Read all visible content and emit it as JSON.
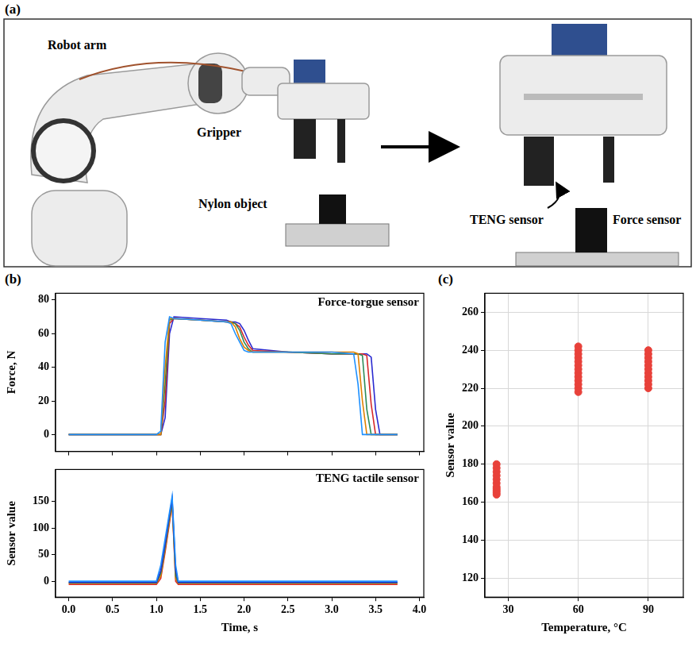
{
  "photo_panel": {
    "panel": "(a)",
    "labels": {
      "robot_arm": "Robot arm",
      "gripper": "Gripper",
      "nylon_object": "Nylon object",
      "teng_sensor": "TENG sensor",
      "force_sensor": "Force sensor"
    }
  },
  "chart_data": [
    {
      "type": "line",
      "panel": "(b)",
      "annotation": "Force-torgue sensor",
      "y_label": "Force, N",
      "grid": false,
      "tick_labels": "y",
      "marker": "none",
      "line_style": "solid",
      "xlim": [
        -0.15,
        4.05
      ],
      "xticks": [
        {
          "value": 0,
          "label": "0.0"
        },
        {
          "value": 0.5,
          "label": "0.5"
        },
        {
          "value": 1,
          "label": "1.0"
        },
        {
          "value": 1.5,
          "label": "1.5"
        },
        {
          "value": 2,
          "label": "2.0"
        },
        {
          "value": 2.5,
          "label": "2.5"
        },
        {
          "value": 3,
          "label": "3.0"
        },
        {
          "value": 3.5,
          "label": "3.5"
        },
        {
          "value": 4,
          "label": "4.0"
        }
      ],
      "ylim": [
        -10,
        84
      ],
      "yticks": [
        0,
        20,
        40,
        60,
        80
      ],
      "x": [
        0,
        1.0,
        1.05,
        1.1,
        1.15,
        1.2,
        1.5,
        1.8,
        1.85,
        1.9,
        1.95,
        2.0,
        2.05,
        2.1,
        2.5,
        3.0,
        3.25,
        3.3,
        3.35,
        3.4,
        3.45,
        3.5,
        3.55,
        3.75
      ],
      "series": [
        {
          "color": "#1e90ff",
          "values": [
            0,
            0,
            2,
            55,
            70,
            69,
            68,
            67,
            66,
            60,
            55,
            50,
            49,
            49,
            49,
            49,
            48,
            30,
            0,
            0,
            0,
            0,
            0,
            0
          ]
        },
        {
          "color": "#e08000",
          "values": [
            0,
            0,
            0,
            40,
            69,
            69,
            68,
            67,
            67,
            64,
            57,
            52,
            50,
            49,
            49,
            49,
            49,
            48,
            20,
            0,
            0,
            0,
            0,
            0
          ]
        },
        {
          "color": "#2e8b57",
          "values": [
            0,
            0,
            0,
            30,
            68,
            69,
            68,
            67,
            67,
            66,
            62,
            55,
            51,
            49,
            49,
            48,
            48,
            48,
            47,
            15,
            0,
            0,
            0,
            0
          ]
        },
        {
          "color": "#d62728",
          "values": [
            0,
            0,
            0,
            20,
            66,
            69,
            68,
            67,
            67,
            66,
            64,
            58,
            53,
            50,
            49,
            48,
            48,
            48,
            48,
            47,
            18,
            0,
            0,
            0
          ]
        },
        {
          "color": "#2a2ad0",
          "values": [
            0,
            0,
            0,
            10,
            60,
            70,
            69,
            68,
            67,
            67,
            66,
            62,
            56,
            51,
            49,
            48,
            48,
            48,
            48,
            48,
            46,
            15,
            0,
            0
          ]
        }
      ]
    },
    {
      "type": "line",
      "annotation": "TENG tactile sensor",
      "x_label": "Time, s",
      "y_label": "Sensor value",
      "grid": false,
      "marker": "none",
      "line_style": "solid",
      "xlim": [
        -0.15,
        4.05
      ],
      "xticks": [
        {
          "value": 0,
          "label": "0.0"
        },
        {
          "value": 0.5,
          "label": "0.5"
        },
        {
          "value": 1,
          "label": "1.0"
        },
        {
          "value": 1.5,
          "label": "1.5"
        },
        {
          "value": 2,
          "label": "2.0"
        },
        {
          "value": 2.5,
          "label": "2.5"
        },
        {
          "value": 3,
          "label": "3.0"
        },
        {
          "value": 3.5,
          "label": "3.5"
        },
        {
          "value": 4,
          "label": "4.0"
        }
      ],
      "ylim": [
        -30,
        210
      ],
      "yticks": [
        0,
        50,
        100,
        150
      ],
      "x": [
        0,
        1.0,
        1.05,
        1.1,
        1.15,
        1.18,
        1.22,
        1.25,
        1.5,
        3.75
      ],
      "series": [
        {
          "color": "#1e90ff",
          "values": [
            0,
            0,
            30,
            80,
            130,
            160,
            30,
            0,
            0,
            0
          ]
        },
        {
          "color": "#2a2ad0",
          "values": [
            -2,
            -2,
            20,
            70,
            125,
            155,
            20,
            -2,
            -2,
            -2
          ]
        },
        {
          "color": "#2e8b57",
          "values": [
            -3,
            -3,
            15,
            65,
            120,
            150,
            10,
            -3,
            -3,
            -3
          ]
        },
        {
          "color": "#e08000",
          "values": [
            -4,
            -4,
            10,
            60,
            115,
            147,
            5,
            -4,
            -4,
            -4
          ]
        },
        {
          "color": "#d62728",
          "values": [
            -6,
            -6,
            5,
            55,
            110,
            145,
            0,
            -6,
            -6,
            -6
          ]
        }
      ]
    },
    {
      "type": "scatter",
      "panel": "(c)",
      "x_label": "Temperature, °C",
      "y_label": "Sensor value",
      "grid": true,
      "marker": "circle",
      "xlim": [
        20,
        105
      ],
      "xticks": [
        30,
        60,
        90
      ],
      "ylim": [
        110,
        270
      ],
      "yticks": [
        120,
        140,
        160,
        180,
        200,
        220,
        240,
        260
      ],
      "series": [
        {
          "color": "#e8413a",
          "x": [
            25,
            25,
            25,
            25,
            25,
            25,
            25,
            25,
            25,
            25,
            25,
            60,
            60,
            60,
            60,
            60,
            60,
            60,
            60,
            60,
            60,
            60,
            60,
            60,
            90,
            90,
            90,
            90,
            90,
            90,
            90,
            90,
            90,
            90,
            90
          ],
          "values": [
            164,
            165,
            166,
            167,
            168,
            170,
            172,
            174,
            176,
            178,
            180,
            218,
            220,
            222,
            224,
            226,
            228,
            230,
            232,
            234,
            236,
            238,
            240,
            242,
            220,
            222,
            224,
            226,
            228,
            230,
            232,
            234,
            236,
            238,
            240
          ]
        },
        {
          "color": "#2b4bdc",
          "x": [
            25,
            25,
            25,
            25,
            25,
            60,
            60,
            60,
            60,
            60,
            90,
            90,
            90,
            90
          ],
          "values": [
            166,
            168,
            170,
            172,
            174,
            222,
            226,
            228,
            230,
            234,
            224,
            228,
            230,
            232
          ]
        }
      ]
    }
  ]
}
